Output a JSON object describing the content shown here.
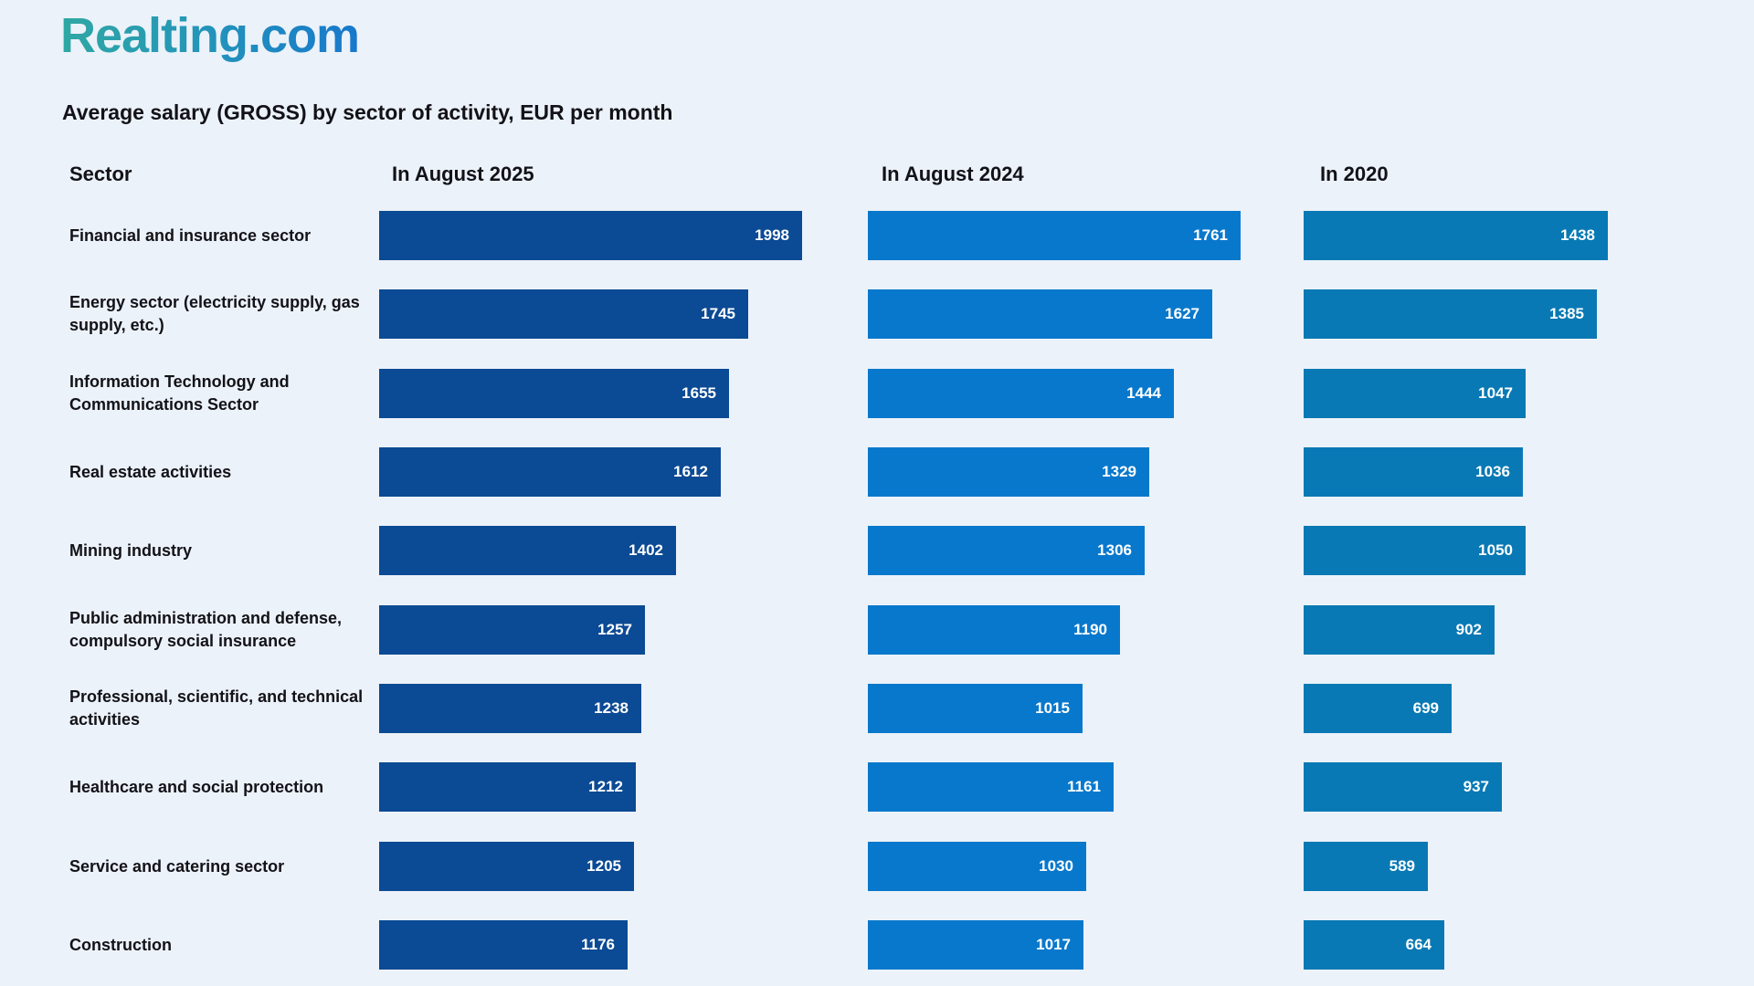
{
  "brand": {
    "logo_text": "Realting.com",
    "gradient_start": "#2FA8A3",
    "gradient_end": "#1878CC"
  },
  "title": "Average salary (GROSS) by sector of activity, EUR per month",
  "colors": {
    "background": "#ECF2F9",
    "heading_text": "#121218",
    "bar_value_text": "#FFFFFF"
  },
  "chart_data": {
    "type": "bar",
    "orientation": "horizontal",
    "units": "EUR per month",
    "xlim": [
      0,
      2000
    ],
    "grid": false,
    "legend_position": "column-headers",
    "column_headers": {
      "sector": "Sector",
      "s2025": "In August 2025",
      "s2024": "In August 2024",
      "s2020": "In 2020"
    },
    "categories": [
      "Financial and insurance sector",
      "Energy sector (electricity supply, gas supply, etc.)",
      "Information Technology and Communications Sector",
      "Real estate activities",
      "Mining industry",
      "Public administration and defense, compulsory social insurance",
      "Professional, scientific, and technical activities",
      "Healthcare and social protection",
      "Service and catering sector",
      "Construction"
    ],
    "series": [
      {
        "name": "In August 2025",
        "color": "#0B4A94",
        "values": [
          1998,
          1745,
          1655,
          1612,
          1402,
          1257,
          1238,
          1212,
          1205,
          1176
        ]
      },
      {
        "name": "In August 2024",
        "color": "#0878CC",
        "values": [
          1761,
          1627,
          1444,
          1329,
          1306,
          1190,
          1015,
          1161,
          1030,
          1017
        ]
      },
      {
        "name": "In 2020",
        "color": "#0879B4",
        "values": [
          1438,
          1385,
          1047,
          1036,
          1050,
          902,
          699,
          937,
          589,
          664
        ]
      }
    ]
  }
}
